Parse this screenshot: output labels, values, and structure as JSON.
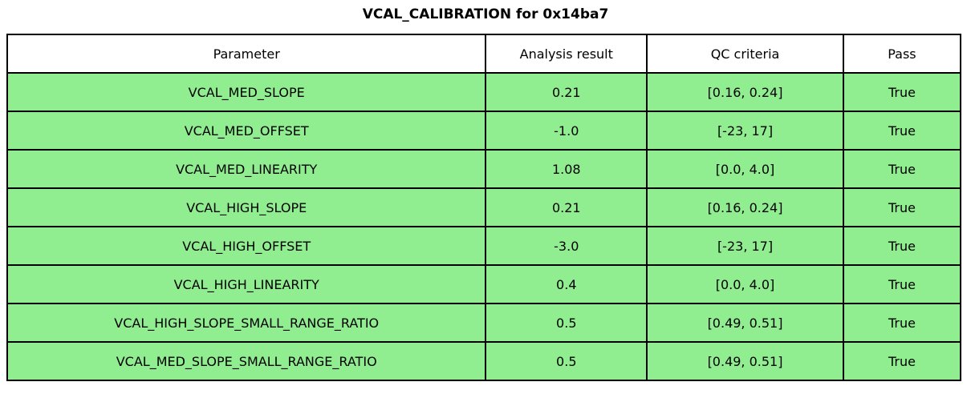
{
  "title": "VCAL_CALIBRATION for 0x14ba7",
  "colors": {
    "pass_row_bg": "#90EE90",
    "header_bg": "#FFFFFF",
    "border": "#000000",
    "text": "#000000"
  },
  "table": {
    "header_keys": [
      "parameter",
      "analysis-result",
      "qc-criteria",
      "pass"
    ],
    "headers": [
      "Parameter",
      "Analysis result",
      "QC criteria",
      "Pass"
    ],
    "rows": [
      [
        "VCAL_MED_SLOPE",
        "0.21",
        "[0.16, 0.24]",
        "True"
      ],
      [
        "VCAL_MED_OFFSET",
        "-1.0",
        "[-23, 17]",
        "True"
      ],
      [
        "VCAL_MED_LINEARITY",
        "1.08",
        "[0.0, 4.0]",
        "True"
      ],
      [
        "VCAL_HIGH_SLOPE",
        "0.21",
        "[0.16, 0.24]",
        "True"
      ],
      [
        "VCAL_HIGH_OFFSET",
        "-3.0",
        "[-23, 17]",
        "True"
      ],
      [
        "VCAL_HIGH_LINEARITY",
        "0.4",
        "[0.0, 4.0]",
        "True"
      ],
      [
        "VCAL_HIGH_SLOPE_SMALL_RANGE_RATIO",
        "0.5",
        "[0.49, 0.51]",
        "True"
      ],
      [
        "VCAL_MED_SLOPE_SMALL_RANGE_RATIO",
        "0.5",
        "[0.49, 0.51]",
        "True"
      ]
    ]
  },
  "chart_data": {
    "type": "table",
    "title": "VCAL_CALIBRATION for 0x14ba7",
    "columns": [
      "Parameter",
      "Analysis result",
      "QC criteria",
      "Pass"
    ],
    "rows": [
      {
        "parameter": "VCAL_MED_SLOPE",
        "analysis_result": 0.21,
        "qc_criteria": "[0.16, 0.24]",
        "pass": true
      },
      {
        "parameter": "VCAL_MED_OFFSET",
        "analysis_result": -1.0,
        "qc_criteria": "[-23, 17]",
        "pass": true
      },
      {
        "parameter": "VCAL_MED_LINEARITY",
        "analysis_result": 1.08,
        "qc_criteria": "[0.0, 4.0]",
        "pass": true
      },
      {
        "parameter": "VCAL_HIGH_SLOPE",
        "analysis_result": 0.21,
        "qc_criteria": "[0.16, 0.24]",
        "pass": true
      },
      {
        "parameter": "VCAL_HIGH_OFFSET",
        "analysis_result": -3.0,
        "qc_criteria": "[-23, 17]",
        "pass": true
      },
      {
        "parameter": "VCAL_HIGH_LINEARITY",
        "analysis_result": 0.4,
        "qc_criteria": "[0.0, 4.0]",
        "pass": true
      },
      {
        "parameter": "VCAL_HIGH_SLOPE_SMALL_RANGE_RATIO",
        "analysis_result": 0.5,
        "qc_criteria": "[0.49, 0.51]",
        "pass": true
      },
      {
        "parameter": "VCAL_MED_SLOPE_SMALL_RANGE_RATIO",
        "analysis_result": 0.5,
        "qc_criteria": "[0.49, 0.51]",
        "pass": true
      }
    ],
    "layout": {
      "row_highlight": "all rows pass -> light green",
      "header_background": "white",
      "grid": "full black cell borders"
    }
  }
}
